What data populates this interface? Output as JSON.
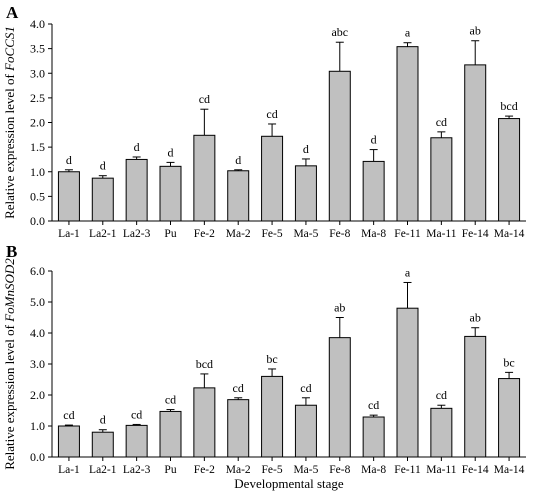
{
  "chart_data": [
    {
      "type": "bar",
      "panel_label": "A",
      "ylabel_prefix": "Relative expression level of ",
      "ylabel_gene": "FoCCS1",
      "ylim": [
        0,
        4.0
      ],
      "yticks": [
        "0.0",
        "0.5",
        "1.0",
        "1.5",
        "2.0",
        "2.5",
        "3.0",
        "3.5",
        "4.0"
      ],
      "categories": [
        "La-1",
        "La2-1",
        "La2-3",
        "Pu",
        "Fe-2",
        "Ma-2",
        "Fe-5",
        "Ma-5",
        "Fe-8",
        "Ma-8",
        "Fe-11",
        "Ma-11",
        "Fe-14",
        "Ma-14"
      ],
      "values": [
        1.0,
        0.87,
        1.25,
        1.11,
        1.74,
        1.02,
        1.72,
        1.12,
        3.04,
        1.21,
        3.54,
        1.69,
        3.17,
        2.08
      ],
      "errors": [
        0.04,
        0.05,
        0.05,
        0.08,
        0.53,
        0.02,
        0.25,
        0.14,
        0.59,
        0.24,
        0.08,
        0.12,
        0.49,
        0.05
      ],
      "significance": [
        "d",
        "d",
        "d",
        "d",
        "cd",
        "d",
        "cd",
        "d",
        "abc",
        "d",
        "a",
        "cd",
        "ab",
        "bcd"
      ],
      "xlabel": ""
    },
    {
      "type": "bar",
      "panel_label": "B",
      "ylabel_prefix": "Relative expression level of ",
      "ylabel_gene": "FoMnSOD2",
      "ylim": [
        0,
        6.0
      ],
      "yticks": [
        "0.0",
        "1.0",
        "2.0",
        "3.0",
        "4.0",
        "5.0",
        "6.0"
      ],
      "categories": [
        "La-1",
        "La2-1",
        "La2-3",
        "Pu",
        "Fe-2",
        "Ma-2",
        "Fe-5",
        "Ma-5",
        "Fe-8",
        "Ma-8",
        "Fe-11",
        "Ma-11",
        "Fe-14",
        "Ma-14"
      ],
      "values": [
        1.0,
        0.8,
        1.02,
        1.47,
        2.23,
        1.85,
        2.6,
        1.67,
        3.85,
        1.29,
        4.8,
        1.57,
        3.89,
        2.53
      ],
      "errors": [
        0.03,
        0.08,
        0.03,
        0.06,
        0.45,
        0.06,
        0.24,
        0.24,
        0.65,
        0.06,
        0.83,
        0.1,
        0.28,
        0.2
      ],
      "significance": [
        "cd",
        "d",
        "cd",
        "cd",
        "bcd",
        "cd",
        "bc",
        "cd",
        "ab",
        "cd",
        "a",
        "cd",
        "ab",
        "bc"
      ],
      "xlabel": "Developmental stage"
    }
  ]
}
